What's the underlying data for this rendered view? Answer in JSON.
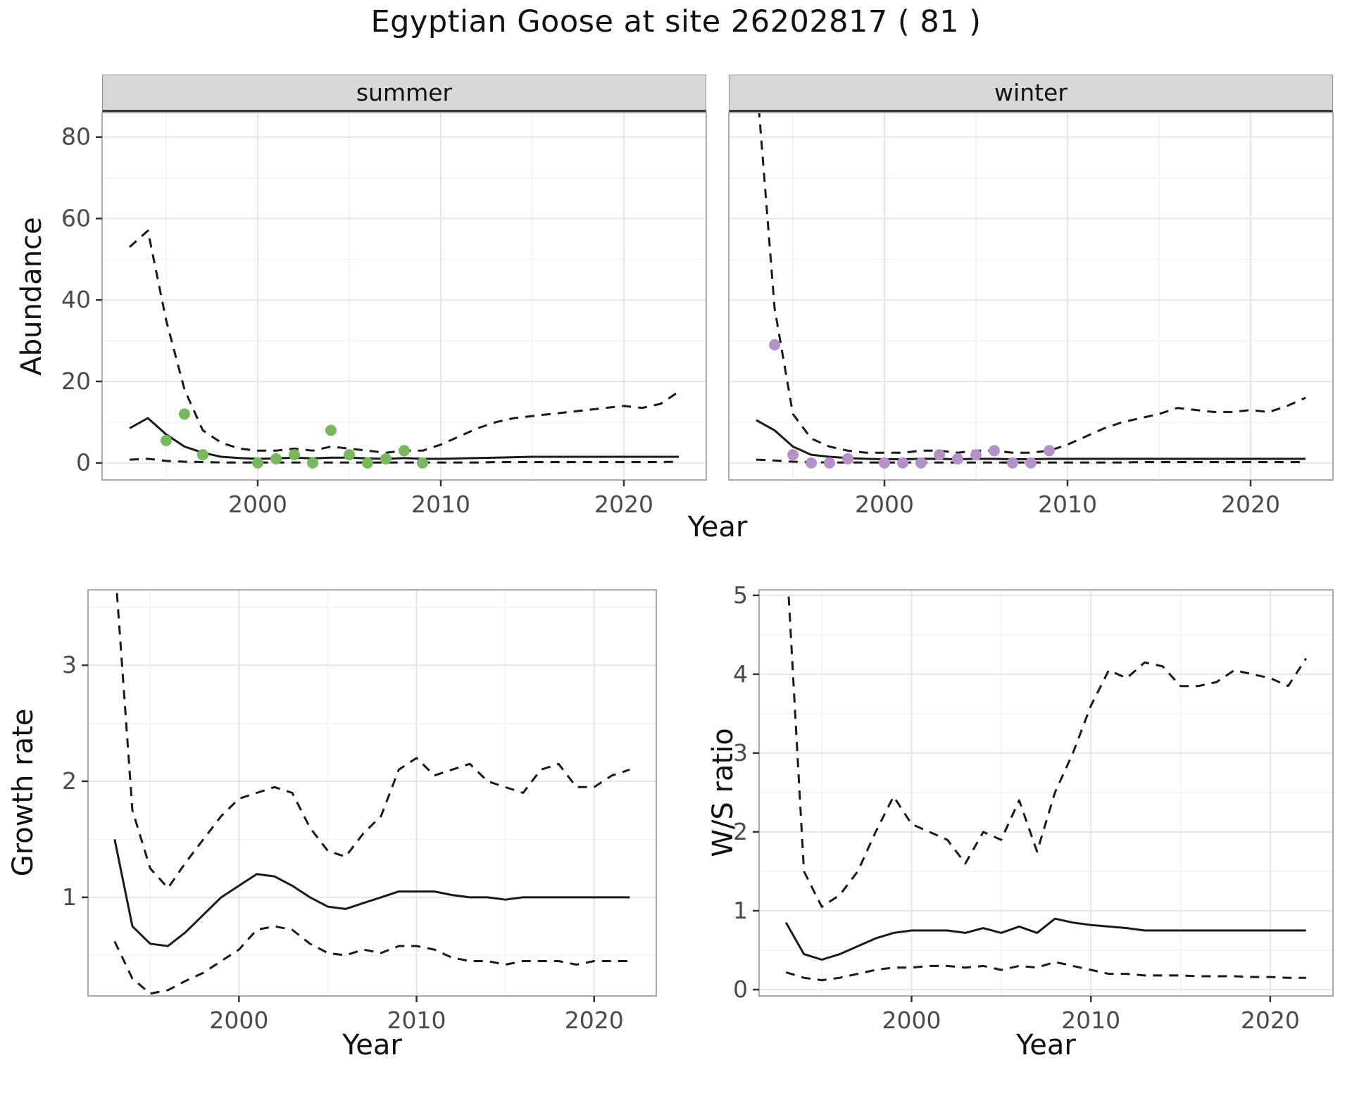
{
  "title": "Egyptian Goose at site 26202817 ( 81 )",
  "chart_data": [
    {
      "type": "line",
      "facet": "summer",
      "xlabel": "Year",
      "ylabel": "Abundance",
      "xlim": [
        1991.5,
        2024.5
      ],
      "ylim": [
        -4.2,
        86
      ],
      "xticks": [
        2000,
        2010,
        2020
      ],
      "yticks": [
        0,
        20,
        40,
        60,
        80
      ],
      "grid": "major-and-minor",
      "years": [
        1993,
        1994,
        1995,
        1996,
        1997,
        1998,
        1999,
        2000,
        2001,
        2002,
        2003,
        2004,
        2005,
        2006,
        2007,
        2008,
        2009,
        2010,
        2011,
        2012,
        2013,
        2014,
        2015,
        2016,
        2017,
        2018,
        2019,
        2020,
        2021,
        2022,
        2023
      ],
      "series": [
        {
          "name": "estimate",
          "style": "solid",
          "values": [
            8.5,
            11,
            7,
            4,
            2.5,
            1.5,
            1.2,
            1,
            1.1,
            1.3,
            1.1,
            1.3,
            1.3,
            1.1,
            1,
            1.2,
            1,
            1,
            1.1,
            1.2,
            1.3,
            1.4,
            1.5,
            1.5,
            1.5,
            1.5,
            1.5,
            1.5,
            1.5,
            1.5,
            1.5
          ]
        },
        {
          "name": "upper-ci",
          "style": "dashed",
          "values": [
            53,
            57,
            35,
            18,
            8,
            5,
            3.5,
            3,
            3,
            3.5,
            3,
            4,
            3.5,
            3,
            2.5,
            3,
            3,
            4.5,
            6.5,
            8.5,
            10,
            11,
            11.5,
            12,
            12.5,
            13,
            13.5,
            14,
            13.5,
            14.5,
            17.5
          ]
        },
        {
          "name": "lower-ci",
          "style": "dashed",
          "values": [
            0.8,
            1,
            0.5,
            0.3,
            0.2,
            0.1,
            0.1,
            0.1,
            0.1,
            0.1,
            0.1,
            0.1,
            0.1,
            0.1,
            0.1,
            0.1,
            0.1,
            0.1,
            0.1,
            0.1,
            0.2,
            0.2,
            0.2,
            0.2,
            0.2,
            0.2,
            0.2,
            0.2,
            0.2,
            0.2,
            0.3
          ]
        }
      ],
      "observations": {
        "color": "#78b85c",
        "x": [
          1995,
          1996,
          1997,
          2000,
          2001,
          2002,
          2003,
          2004,
          2005,
          2006,
          2007,
          2008,
          2009
        ],
        "y": [
          5.5,
          12,
          2,
          0,
          1,
          2,
          0,
          8,
          2,
          0,
          1,
          3,
          0
        ]
      }
    },
    {
      "type": "line",
      "facet": "winter",
      "xlabel": "Year",
      "ylabel": "Abundance",
      "xlim": [
        1991.5,
        2024.5
      ],
      "ylim": [
        -4.2,
        86
      ],
      "xticks": [
        2000,
        2010,
        2020
      ],
      "yticks": [
        0,
        20,
        40,
        60,
        80
      ],
      "grid": "major-and-minor",
      "years": [
        1993,
        1994,
        1995,
        1996,
        1997,
        1998,
        1999,
        2000,
        2001,
        2002,
        2003,
        2004,
        2005,
        2006,
        2007,
        2008,
        2009,
        2010,
        2011,
        2012,
        2013,
        2014,
        2015,
        2016,
        2017,
        2018,
        2019,
        2020,
        2021,
        2022,
        2023
      ],
      "series": [
        {
          "name": "estimate",
          "style": "solid",
          "values": [
            10.5,
            8,
            4,
            2,
            1.5,
            1.2,
            1,
            0.9,
            0.9,
            1,
            1,
            0.9,
            1,
            1,
            0.9,
            0.9,
            1,
            1,
            1,
            1,
            1,
            1,
            1,
            1,
            1,
            1,
            1,
            1,
            1,
            1,
            1
          ]
        },
        {
          "name": "upper-ci",
          "style": "dashed",
          "values": [
            95,
            38,
            12,
            6,
            4,
            3,
            2.5,
            2.5,
            2.5,
            3,
            3,
            2.5,
            3,
            3,
            2.5,
            2.5,
            3,
            4.5,
            6.5,
            8.5,
            10,
            11,
            12,
            13.5,
            13,
            12.5,
            12.5,
            13,
            12.5,
            14,
            16
          ]
        },
        {
          "name": "lower-ci",
          "style": "dashed",
          "values": [
            0.8,
            0.6,
            0.3,
            0.2,
            0.1,
            0.1,
            0.1,
            0.1,
            0.1,
            0.1,
            0.1,
            0.1,
            0.1,
            0.1,
            0.1,
            0.1,
            0.1,
            0.1,
            0.1,
            0.1,
            0.1,
            0.2,
            0.2,
            0.2,
            0.2,
            0.2,
            0.2,
            0.2,
            0.2,
            0.2,
            0.2
          ]
        }
      ],
      "observations": {
        "color": "#b492c8",
        "x": [
          1994,
          1995,
          1996,
          1997,
          1998,
          2000,
          2001,
          2002,
          2003,
          2004,
          2005,
          2006,
          2007,
          2008,
          2009
        ],
        "y": [
          29,
          2,
          0,
          0,
          1,
          0,
          0,
          0,
          2,
          1,
          2,
          3,
          0,
          0,
          3
        ]
      }
    },
    {
      "type": "line",
      "facet": "",
      "xlabel": "Year",
      "ylabel": "Growth rate",
      "xlim": [
        1991.5,
        2023.5
      ],
      "ylim": [
        0.15,
        3.65
      ],
      "xticks": [
        2000,
        2010,
        2020
      ],
      "yticks": [
        1,
        2,
        3
      ],
      "grid": "major-and-minor",
      "years": [
        1993,
        1994,
        1995,
        1996,
        1997,
        1998,
        1999,
        2000,
        2001,
        2002,
        2003,
        2004,
        2005,
        2006,
        2007,
        2008,
        2009,
        2010,
        2011,
        2012,
        2013,
        2014,
        2015,
        2016,
        2017,
        2018,
        2019,
        2020,
        2021,
        2022
      ],
      "series": [
        {
          "name": "estimate",
          "style": "solid",
          "values": [
            1.5,
            0.75,
            0.6,
            0.58,
            0.7,
            0.85,
            1,
            1.1,
            1.2,
            1.18,
            1.1,
            1,
            0.92,
            0.9,
            0.95,
            1,
            1.05,
            1.05,
            1.05,
            1.02,
            1,
            1,
            0.98,
            1,
            1,
            1,
            1,
            1,
            1,
            1
          ]
        },
        {
          "name": "upper-ci",
          "style": "dashed",
          "values": [
            3.9,
            1.75,
            1.25,
            1.08,
            1.3,
            1.5,
            1.7,
            1.85,
            1.9,
            1.95,
            1.9,
            1.6,
            1.4,
            1.35,
            1.55,
            1.7,
            2.1,
            2.2,
            2.05,
            2.1,
            2.15,
            2.0,
            1.95,
            1.9,
            2.1,
            2.15,
            1.95,
            1.95,
            2.05,
            2.1
          ]
        },
        {
          "name": "lower-ci",
          "style": "dashed",
          "values": [
            0.62,
            0.3,
            0.17,
            0.2,
            0.28,
            0.35,
            0.45,
            0.55,
            0.72,
            0.75,
            0.72,
            0.6,
            0.52,
            0.5,
            0.55,
            0.52,
            0.58,
            0.58,
            0.55,
            0.48,
            0.45,
            0.45,
            0.42,
            0.45,
            0.45,
            0.45,
            0.42,
            0.45,
            0.45,
            0.45
          ]
        }
      ]
    },
    {
      "type": "line",
      "facet": "",
      "xlabel": "Year",
      "ylabel": "W/S ratio",
      "xlim": [
        1991.5,
        2023.5
      ],
      "ylim": [
        -0.08,
        5.07
      ],
      "xticks": [
        2000,
        2010,
        2020
      ],
      "yticks": [
        0,
        1,
        2,
        3,
        4,
        5
      ],
      "grid": "major-and-minor",
      "years": [
        1993,
        1994,
        1995,
        1996,
        1997,
        1998,
        1999,
        2000,
        2001,
        2002,
        2003,
        2004,
        2005,
        2006,
        2007,
        2008,
        2009,
        2010,
        2011,
        2012,
        2013,
        2014,
        2015,
        2016,
        2017,
        2018,
        2019,
        2020,
        2021,
        2022
      ],
      "series": [
        {
          "name": "estimate",
          "style": "solid",
          "values": [
            0.85,
            0.45,
            0.38,
            0.45,
            0.55,
            0.65,
            0.72,
            0.75,
            0.75,
            0.75,
            0.72,
            0.78,
            0.72,
            0.8,
            0.72,
            0.9,
            0.85,
            0.82,
            0.8,
            0.78,
            0.75,
            0.75,
            0.75,
            0.75,
            0.75,
            0.75,
            0.75,
            0.75,
            0.75,
            0.75
          ]
        },
        {
          "name": "upper-ci",
          "style": "dashed",
          "values": [
            5.6,
            1.5,
            1.05,
            1.2,
            1.5,
            2.0,
            2.45,
            2.1,
            2.0,
            1.9,
            1.6,
            2.0,
            1.9,
            2.4,
            1.75,
            2.5,
            3.0,
            3.6,
            4.05,
            3.95,
            4.15,
            4.1,
            3.85,
            3.85,
            3.9,
            4.05,
            4.0,
            3.95,
            3.85,
            4.2
          ]
        },
        {
          "name": "lower-ci",
          "style": "dashed",
          "values": [
            0.22,
            0.15,
            0.12,
            0.15,
            0.2,
            0.25,
            0.28,
            0.28,
            0.3,
            0.3,
            0.28,
            0.3,
            0.25,
            0.3,
            0.28,
            0.35,
            0.3,
            0.25,
            0.2,
            0.2,
            0.18,
            0.18,
            0.18,
            0.17,
            0.17,
            0.17,
            0.16,
            0.16,
            0.15,
            0.15
          ]
        }
      ]
    }
  ],
  "style": {
    "line_color": "#1a1a1a",
    "grid_major_color": "#e5e5e5",
    "grid_minor_color": "#f2f2f2",
    "panel_border_color": "#a9a9a9",
    "strip_fill": "#d8d8d8",
    "summer_point_color": "#78b85c",
    "winter_point_color": "#b492c8"
  }
}
